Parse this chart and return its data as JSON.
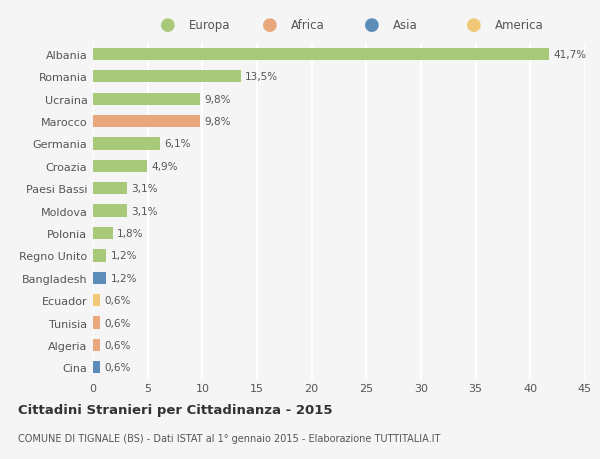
{
  "countries": [
    "Albania",
    "Romania",
    "Ucraina",
    "Marocco",
    "Germania",
    "Croazia",
    "Paesi Bassi",
    "Moldova",
    "Polonia",
    "Regno Unito",
    "Bangladesh",
    "Ecuador",
    "Tunisia",
    "Algeria",
    "Cina"
  ],
  "values": [
    41.7,
    13.5,
    9.8,
    9.8,
    6.1,
    4.9,
    3.1,
    3.1,
    1.8,
    1.2,
    1.2,
    0.6,
    0.6,
    0.6,
    0.6
  ],
  "labels": [
    "41,7%",
    "13,5%",
    "9,8%",
    "9,8%",
    "6,1%",
    "4,9%",
    "3,1%",
    "3,1%",
    "1,8%",
    "1,2%",
    "1,2%",
    "0,6%",
    "0,6%",
    "0,6%",
    "0,6%"
  ],
  "continents": [
    "Europa",
    "Europa",
    "Europa",
    "Africa",
    "Europa",
    "Europa",
    "Europa",
    "Europa",
    "Europa",
    "Europa",
    "Asia",
    "America",
    "Africa",
    "Africa",
    "Asia"
  ],
  "continent_colors": {
    "Europa": "#a8c87a",
    "Africa": "#e8a87c",
    "Asia": "#5b8db8",
    "America": "#f0c878"
  },
  "legend_entries": [
    "Europa",
    "Africa",
    "Asia",
    "America"
  ],
  "legend_colors": [
    "#a8c87a",
    "#e8a87c",
    "#5b8db8",
    "#f0c878"
  ],
  "xlim": [
    0,
    45
  ],
  "xticks": [
    0,
    5,
    10,
    15,
    20,
    25,
    30,
    35,
    40,
    45
  ],
  "title": "Cittadini Stranieri per Cittadinanza - 2015",
  "subtitle": "COMUNE DI TIGNALE (BS) - Dati ISTAT al 1° gennaio 2015 - Elaborazione TUTTITALIA.IT",
  "background_color": "#f5f5f5",
  "grid_color": "#ffffff",
  "text_color": "#555555",
  "bar_height": 0.55
}
